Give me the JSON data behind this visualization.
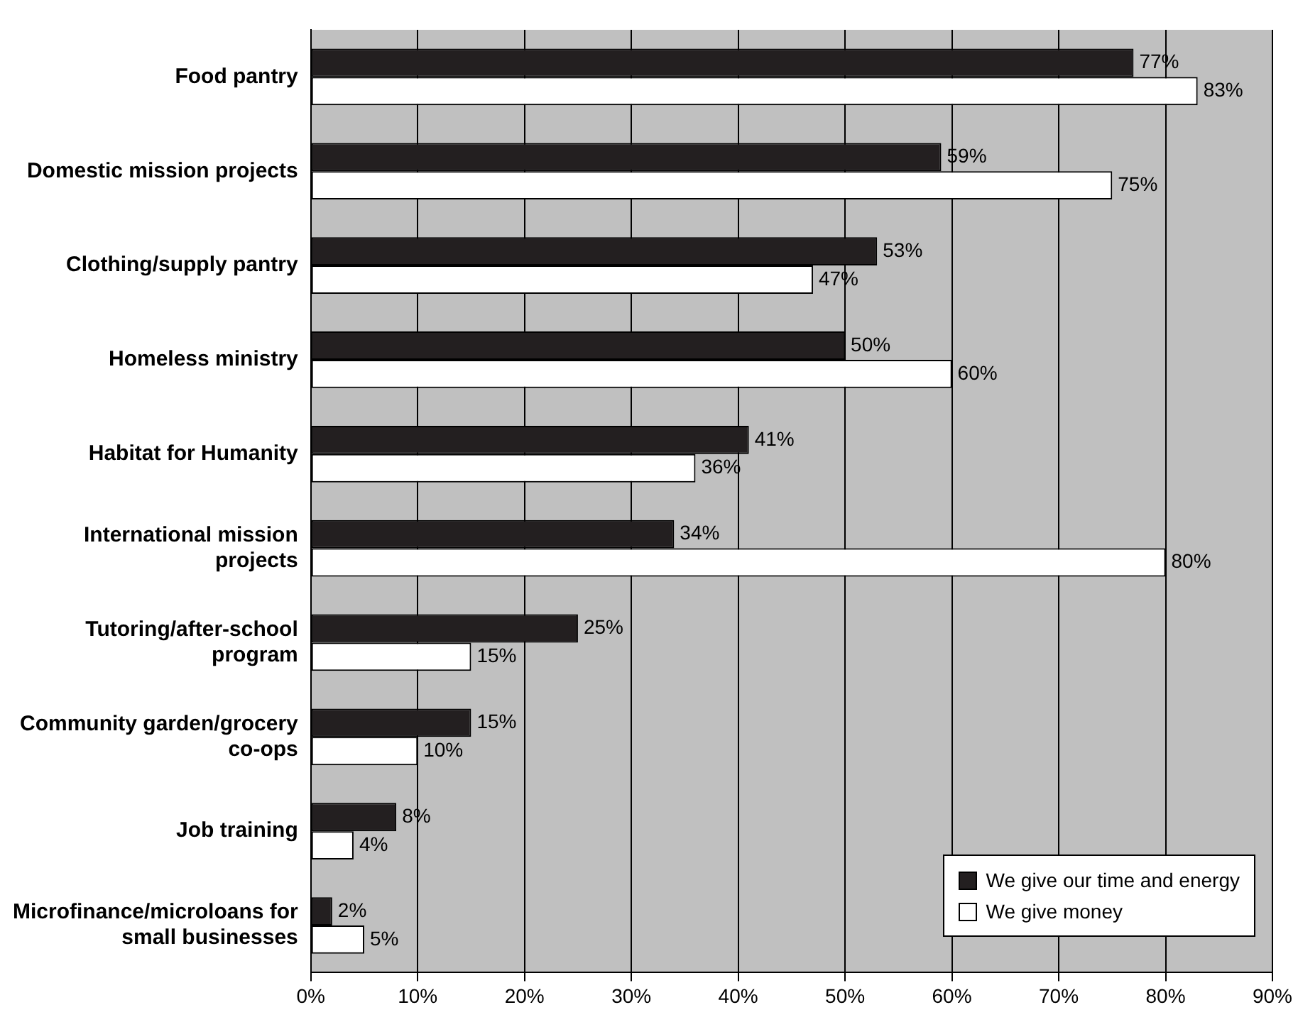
{
  "chart_data": {
    "type": "bar",
    "orientation": "horizontal",
    "categories": [
      "Food pantry",
      "Domestic mission projects",
      "Clothing/supply pantry",
      "Homeless ministry",
      "Habitat for Humanity",
      "International mission\nprojects",
      "Tutoring/after-school\nprogram",
      "Community garden/grocery\nco-ops",
      "Job training",
      "Microfinance/microloans for\nsmall businesses"
    ],
    "series": [
      {
        "name": "We give our time and energy",
        "color": "#231f20",
        "values": [
          77,
          59,
          53,
          50,
          41,
          34,
          25,
          15,
          8,
          2
        ],
        "value_labels": [
          "77%",
          "59%",
          "53%",
          "50%",
          "41%",
          "34%",
          "25%",
          "15%",
          "8%",
          "2%"
        ]
      },
      {
        "name": "We give money",
        "color": "#ffffff",
        "values": [
          83,
          75,
          47,
          60,
          36,
          80,
          15,
          10,
          4,
          5
        ],
        "value_labels": [
          "83%",
          "75%",
          "47%",
          "60%",
          "36%",
          "80%",
          "15%",
          "10%",
          "4%",
          "5%"
        ]
      }
    ],
    "xlim": [
      0,
      90
    ],
    "xticks": [
      {
        "value": 0,
        "label": "0%"
      },
      {
        "value": 10,
        "label": "10%"
      },
      {
        "value": 20,
        "label": "20%"
      },
      {
        "value": 30,
        "label": "30%"
      },
      {
        "value": 40,
        "label": "40%"
      },
      {
        "value": 50,
        "label": "50%"
      },
      {
        "value": 60,
        "label": "60%"
      },
      {
        "value": 70,
        "label": "70%"
      },
      {
        "value": 80,
        "label": "80%"
      },
      {
        "value": 90,
        "label": "90%"
      }
    ],
    "grid": "x",
    "legend": "bottom right"
  }
}
